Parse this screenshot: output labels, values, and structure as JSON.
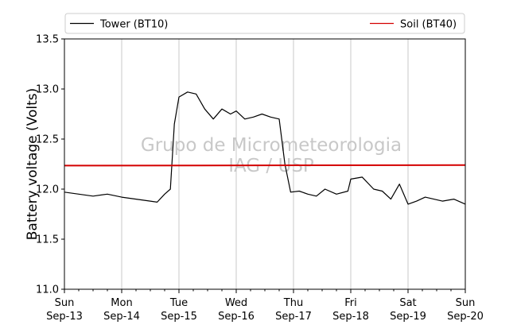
{
  "chart_data": {
    "type": "line",
    "title": "",
    "xlabel": "",
    "ylabel": "Battery voltage (Volts)",
    "ylim": [
      11.0,
      13.5
    ],
    "yticks": [
      11.0,
      11.5,
      12.0,
      12.5,
      13.0,
      13.5
    ],
    "ytick_labels": [
      "11.0",
      "11.5",
      "12.0",
      "12.5",
      "13.0",
      "13.5"
    ],
    "xlim": [
      0,
      7
    ],
    "xticks": [
      {
        "day": "Sun",
        "date": "Sep-13"
      },
      {
        "day": "Mon",
        "date": "Sep-14"
      },
      {
        "day": "Tue",
        "date": "Sep-15"
      },
      {
        "day": "Wed",
        "date": "Sep-16"
      },
      {
        "day": "Thu",
        "date": "Sep-17"
      },
      {
        "day": "Fri",
        "date": "Sep-18"
      },
      {
        "day": "Sat",
        "date": "Sep-19"
      },
      {
        "day": "Sun",
        "date": "Sep-20"
      }
    ],
    "grid": "vertical",
    "legend_position": "top",
    "watermark": [
      "Grupo de Micrometeorologia",
      "IAG / USP"
    ],
    "series": [
      {
        "name": "Tower (BT10)",
        "color": "#000000",
        "x": [
          0.0,
          0.25,
          0.5,
          0.75,
          1.0,
          1.25,
          1.5,
          1.62,
          1.75,
          1.85,
          1.92,
          2.0,
          2.15,
          2.3,
          2.45,
          2.6,
          2.75,
          2.9,
          3.0,
          3.15,
          3.3,
          3.45,
          3.6,
          3.75,
          3.85,
          3.95,
          4.1,
          4.25,
          4.4,
          4.55,
          4.75,
          4.95,
          5.0,
          5.2,
          5.4,
          5.55,
          5.7,
          5.85,
          6.0,
          6.15,
          6.3,
          6.45,
          6.6,
          6.8,
          7.0
        ],
        "y": [
          11.97,
          11.95,
          11.93,
          11.95,
          11.92,
          11.9,
          11.88,
          11.87,
          11.95,
          12.0,
          12.65,
          12.92,
          12.97,
          12.95,
          12.8,
          12.7,
          12.8,
          12.75,
          12.78,
          12.7,
          12.72,
          12.75,
          12.72,
          12.7,
          12.25,
          11.97,
          11.98,
          11.95,
          11.93,
          12.0,
          11.95,
          11.98,
          12.1,
          12.12,
          12.0,
          11.98,
          11.9,
          12.05,
          11.85,
          11.88,
          11.92,
          11.9,
          11.88,
          11.9,
          11.85
        ]
      },
      {
        "name": "Soil (BT40)",
        "color": "#d40000",
        "x": [
          0,
          7
        ],
        "y": [
          12.235,
          12.24
        ]
      }
    ]
  }
}
